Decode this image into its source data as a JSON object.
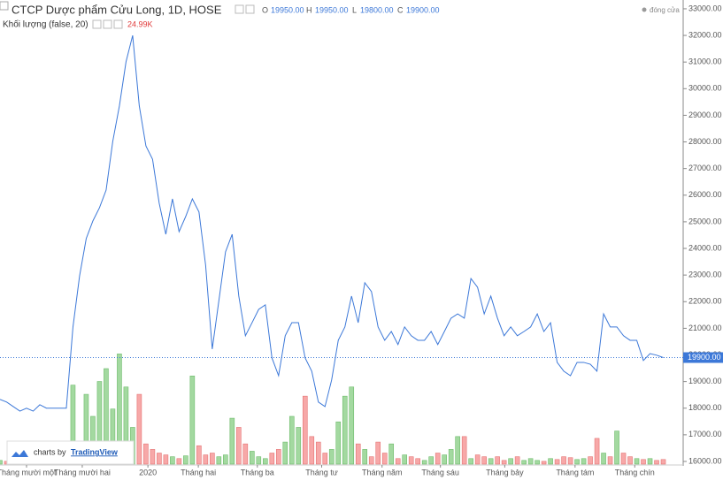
{
  "header": {
    "title": "CTCP Dược phẩm Cửu Long, 1D, HOSE",
    "o_label": "O",
    "open": "19950.00",
    "h_label": "H",
    "high": "19950.00",
    "l_label": "L",
    "low": "19800.00",
    "c_label": "C",
    "close": "19900.00",
    "volume_title": "Khối lượng (false, 20)",
    "volume_value": "24.99K",
    "legend": "đóng cửa",
    "branding": "charts by",
    "brand": "TradingView"
  },
  "chart_data": {
    "type": "line",
    "x": [
      0,
      1,
      2,
      3,
      4,
      5,
      6,
      7,
      8,
      9,
      10,
      11,
      12,
      13,
      14,
      15,
      16,
      17,
      18,
      19,
      20,
      21,
      22,
      23,
      24,
      25,
      26,
      27,
      28,
      29,
      30,
      31,
      32,
      33,
      34,
      35,
      36,
      37,
      38,
      39,
      40,
      41,
      42,
      43,
      44,
      45,
      46,
      47,
      48,
      49,
      50,
      51,
      52,
      53,
      54,
      55,
      56,
      57,
      58,
      59,
      60,
      61,
      62,
      63,
      64,
      65,
      66,
      67,
      68,
      69,
      70,
      71,
      72,
      73,
      74,
      75,
      76,
      77,
      78,
      79,
      80,
      81,
      82,
      83,
      84,
      85,
      86,
      87,
      88,
      89,
      90,
      91,
      92,
      93,
      94,
      95,
      96,
      97,
      98,
      99,
      100
    ],
    "series": [
      {
        "name": "đóng cửa",
        "color": "#3c78d8",
        "values": [
          18330,
          18230,
          18060,
          17890,
          18000,
          17890,
          18130,
          18000,
          18000,
          18000,
          18000,
          21050,
          22970,
          24370,
          25030,
          25530,
          26190,
          28020,
          29350,
          31010,
          32000,
          29350,
          27850,
          27350,
          25700,
          24530,
          25860,
          24630,
          25200,
          25860,
          25370,
          23370,
          20220,
          22040,
          23870,
          24530,
          22210,
          20720,
          21210,
          21710,
          21880,
          19890,
          19220,
          20720,
          21210,
          21210,
          19890,
          19390,
          18230,
          18060,
          19060,
          20550,
          21050,
          22210,
          21210,
          22710,
          22380,
          21050,
          20550,
          20880,
          20390,
          21050,
          20720,
          20550,
          20550,
          20880,
          20390,
          20880,
          21380,
          21540,
          21380,
          22870,
          22540,
          21540,
          22210,
          21380,
          20720,
          21050,
          20720,
          20880,
          21050,
          21540,
          20880,
          21210,
          19720,
          19390,
          19220,
          19720,
          19720,
          19650,
          19390,
          21540,
          21050,
          21050,
          20720,
          20550,
          20550,
          19790,
          20050,
          19990,
          19900
        ]
      }
    ],
    "volume": {
      "up_color": "#a3d9a0",
      "down_color": "#f7a8a8",
      "vlim": [
        0,
        650
      ],
      "values": [
        20,
        15,
        10,
        12,
        8,
        10,
        15,
        12,
        10,
        20,
        15,
        430,
        120,
        380,
        260,
        450,
        520,
        300,
        600,
        420,
        200,
        380,
        110,
        80,
        60,
        50,
        40,
        30,
        45,
        480,
        100,
        50,
        60,
        40,
        50,
        250,
        200,
        110,
        70,
        40,
        30,
        60,
        80,
        120,
        260,
        200,
        370,
        150,
        120,
        60,
        80,
        230,
        370,
        420,
        110,
        80,
        40,
        120,
        60,
        110,
        30,
        50,
        40,
        30,
        20,
        40,
        60,
        50,
        80,
        150,
        150,
        30,
        50,
        40,
        30,
        40,
        20,
        30,
        40,
        20,
        30,
        20,
        15,
        30,
        25,
        40,
        35,
        25,
        30,
        40,
        140,
        60,
        40,
        180,
        60,
        40,
        30,
        25,
        30,
        20,
        24.99
      ]
    },
    "xlim": [
      0,
      103
    ],
    "xticks": [
      {
        "value": 4,
        "label": "Tháng mười một"
      },
      {
        "value": 12.4,
        "label": "Tháng mười hai"
      },
      {
        "value": 22.3,
        "label": "2020"
      },
      {
        "value": 29.9,
        "label": "Tháng hai"
      },
      {
        "value": 38.8,
        "label": "Tháng ba"
      },
      {
        "value": 48.5,
        "label": "Tháng tư"
      },
      {
        "value": 57.6,
        "label": "Tháng năm"
      },
      {
        "value": 66.4,
        "label": "Tháng sáu"
      },
      {
        "value": 76.1,
        "label": "Tháng bảy"
      },
      {
        "value": 86.7,
        "label": "Tháng tám"
      },
      {
        "value": 95.7,
        "label": "Tháng chín"
      }
    ],
    "ylim": [
      15900,
      33330
    ],
    "yticks": [
      {
        "value": 16000,
        "label": "16000.00"
      },
      {
        "value": 17000,
        "label": "17000.00"
      },
      {
        "value": 18000,
        "label": "18000.00"
      },
      {
        "value": 19000,
        "label": "19000.00"
      },
      {
        "value": 20000,
        "label": "20000.00"
      },
      {
        "value": 21000,
        "label": "21000.00"
      },
      {
        "value": 22000,
        "label": "22000.00"
      },
      {
        "value": 23000,
        "label": "23000.00"
      },
      {
        "value": 24000,
        "label": "24000.00"
      },
      {
        "value": 25000,
        "label": "25000.00"
      },
      {
        "value": 26000,
        "label": "26000.00"
      },
      {
        "value": 27000,
        "label": "27000.00"
      },
      {
        "value": 28000,
        "label": "28000.00"
      },
      {
        "value": 29000,
        "label": "29000.00"
      },
      {
        "value": 30000,
        "label": "30000.00"
      },
      {
        "value": 31000,
        "label": "31000.00"
      },
      {
        "value": 32000,
        "label": "32000.00"
      },
      {
        "value": 33000,
        "label": "33000.00"
      }
    ],
    "grid": false
  }
}
